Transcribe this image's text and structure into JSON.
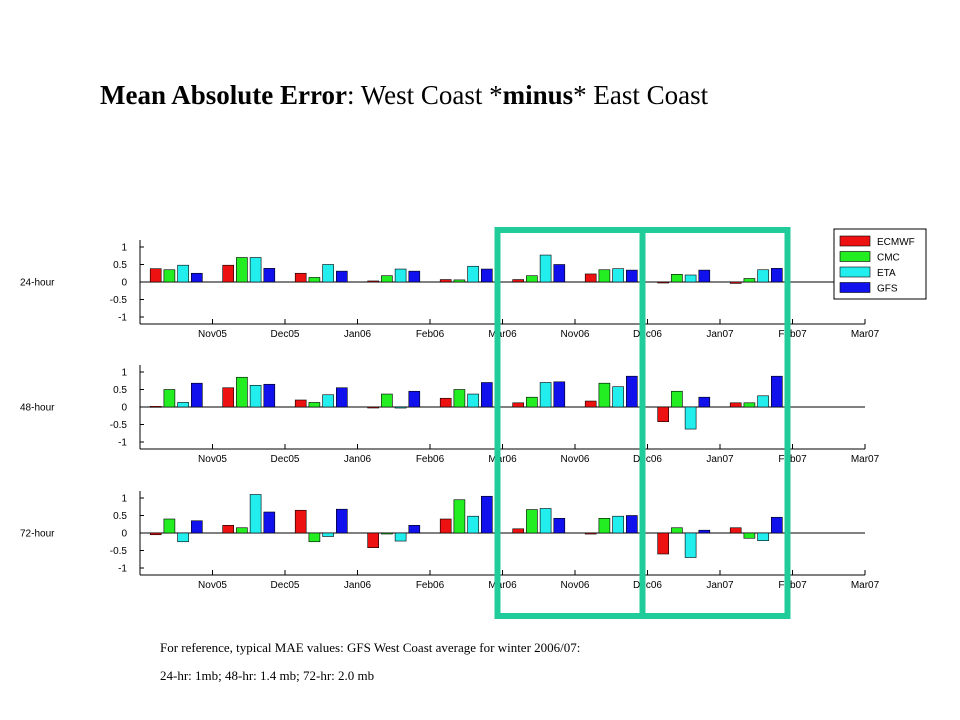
{
  "title": {
    "bold_part": "Mean Absolute Error",
    "colon": ":",
    "mid_part": " West Coast *",
    "bold_minus": "minus",
    "end_part": "* East Coast"
  },
  "notes": {
    "line1": "For reference, typical MAE values:  GFS West Coast average for winter 2006/07:",
    "line2": "24-hr:  1mb;    48-hr:  1.4 mb;    72-hr:  2.0 mb"
  },
  "chart_data": {
    "type": "bar",
    "categories": [
      "Nov05",
      "Dec05",
      "Jan06",
      "Feb06",
      "Mar06",
      "Nov06",
      "Dec06",
      "Jan07",
      "Feb07",
      "Mar07"
    ],
    "yticks": [
      1,
      0.5,
      0,
      -0.5,
      -1
    ],
    "ytick_labels": [
      "1",
      "0.5",
      "0",
      "-0.5",
      "-1"
    ],
    "ylim": [
      -1.2,
      1.2
    ],
    "legend": {
      "position": "top-right",
      "entries": [
        {
          "name": "ECMWF",
          "color": "#ee1111"
        },
        {
          "name": "CMC",
          "color": "#22ee22"
        },
        {
          "name": "ETA",
          "color": "#22eeee"
        },
        {
          "name": "GFS",
          "color": "#1111ee"
        }
      ]
    },
    "highlight_color": "#1fcc9a",
    "highlight_groups": [
      [
        "Nov06",
        "Dec06"
      ],
      [
        "Jan07",
        "Feb07"
      ]
    ],
    "panels": [
      {
        "label": "24-hour",
        "series": [
          {
            "name": "ECMWF",
            "values": [
              0.38,
              0.48,
              0.25,
              0.03,
              0.07,
              0.07,
              0.23,
              -0.02,
              -0.04,
              null
            ]
          },
          {
            "name": "CMC",
            "values": [
              0.35,
              0.7,
              0.13,
              0.18,
              0.06,
              0.18,
              0.35,
              0.22,
              0.1,
              null
            ]
          },
          {
            "name": "ETA",
            "values": [
              0.48,
              0.7,
              0.5,
              0.37,
              0.45,
              0.77,
              0.38,
              0.2,
              0.35,
              null
            ]
          },
          {
            "name": "GFS",
            "values": [
              0.25,
              0.39,
              0.31,
              0.31,
              0.37,
              0.5,
              0.34,
              0.34,
              0.39,
              null
            ]
          }
        ]
      },
      {
        "label": "48-hour",
        "series": [
          {
            "name": "ECMWF",
            "values": [
              0.02,
              0.55,
              0.2,
              -0.02,
              0.25,
              0.12,
              0.17,
              -0.42,
              0.12,
              null
            ]
          },
          {
            "name": "CMC",
            "values": [
              0.5,
              0.85,
              0.13,
              0.37,
              0.5,
              0.28,
              0.68,
              0.45,
              0.12,
              null
            ]
          },
          {
            "name": "ETA",
            "values": [
              0.13,
              0.62,
              0.35,
              -0.03,
              0.37,
              0.7,
              0.58,
              -0.63,
              0.32,
              null
            ]
          },
          {
            "name": "GFS",
            "values": [
              0.68,
              0.65,
              0.55,
              0.45,
              0.7,
              0.72,
              0.88,
              0.28,
              0.88,
              null
            ]
          }
        ]
      },
      {
        "label": "72-hour",
        "series": [
          {
            "name": "ECMWF",
            "values": [
              -0.05,
              0.22,
              0.65,
              -0.42,
              0.4,
              0.12,
              -0.03,
              -0.6,
              0.15,
              null
            ]
          },
          {
            "name": "CMC",
            "values": [
              0.4,
              0.15,
              -0.25,
              -0.02,
              0.95,
              0.67,
              0.42,
              0.15,
              -0.15,
              null
            ]
          },
          {
            "name": "ETA",
            "values": [
              -0.25,
              1.1,
              -0.1,
              -0.23,
              0.48,
              0.7,
              0.48,
              -0.7,
              -0.22,
              null
            ]
          },
          {
            "name": "GFS",
            "values": [
              0.35,
              0.6,
              0.68,
              0.22,
              1.05,
              0.42,
              0.5,
              0.08,
              0.45,
              null
            ]
          }
        ]
      }
    ]
  }
}
